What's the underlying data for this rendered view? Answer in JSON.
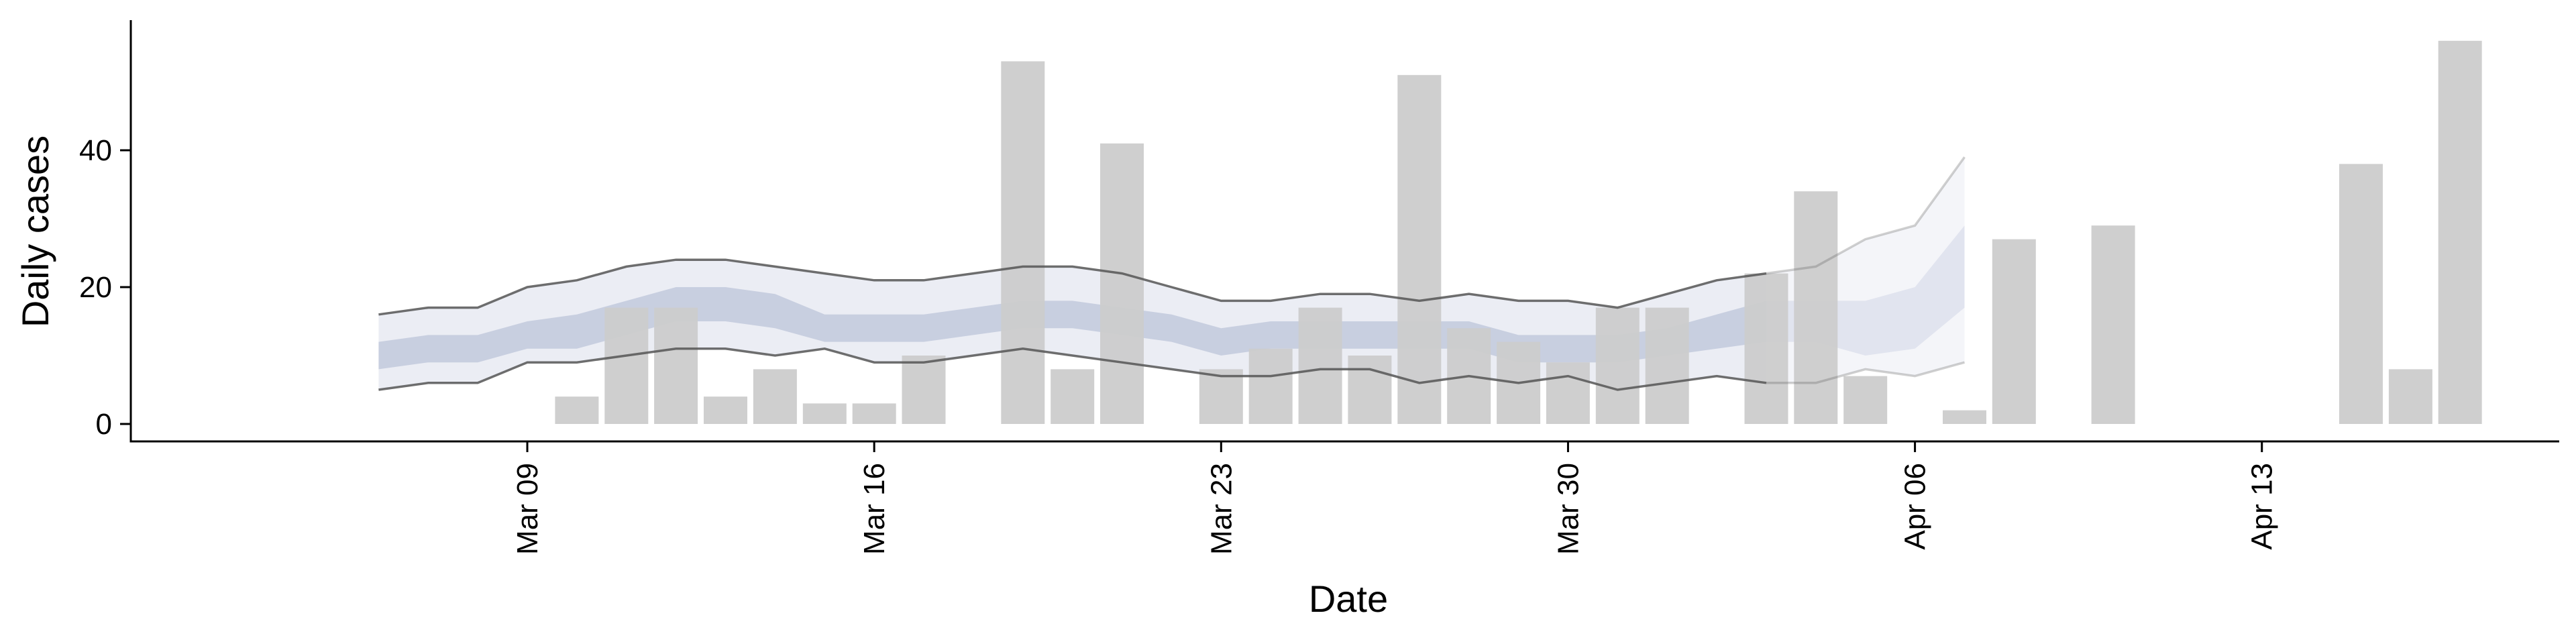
{
  "chart_data": {
    "type": "bar",
    "xlabel": "Date",
    "ylabel": "Daily cases",
    "ylim": [
      0,
      58
    ],
    "yticks": [
      0,
      20,
      40
    ],
    "xlim": [
      "2020-03-01",
      "2020-04-19"
    ],
    "xticks": [
      {
        "date": "2020-03-09",
        "label": "Mar 09"
      },
      {
        "date": "2020-03-16",
        "label": "Mar 16"
      },
      {
        "date": "2020-03-23",
        "label": "Mar 23"
      },
      {
        "date": "2020-03-30",
        "label": "Mar 30"
      },
      {
        "date": "2020-04-06",
        "label": "Apr 06"
      },
      {
        "date": "2020-04-13",
        "label": "Apr 13"
      }
    ],
    "bar_color": "#cccccc",
    "band_color": "#8090b8",
    "line_color": "#555555",
    "grid": false,
    "bars": [
      {
        "date": "2020-03-10",
        "value": 4
      },
      {
        "date": "2020-03-11",
        "value": 17
      },
      {
        "date": "2020-03-12",
        "value": 17
      },
      {
        "date": "2020-03-13",
        "value": 4
      },
      {
        "date": "2020-03-14",
        "value": 8
      },
      {
        "date": "2020-03-15",
        "value": 3
      },
      {
        "date": "2020-03-16",
        "value": 3
      },
      {
        "date": "2020-03-17",
        "value": 10
      },
      {
        "date": "2020-03-19",
        "value": 53
      },
      {
        "date": "2020-03-20",
        "value": 8
      },
      {
        "date": "2020-03-21",
        "value": 41
      },
      {
        "date": "2020-03-23",
        "value": 8
      },
      {
        "date": "2020-03-24",
        "value": 11
      },
      {
        "date": "2020-03-25",
        "value": 17
      },
      {
        "date": "2020-03-26",
        "value": 10
      },
      {
        "date": "2020-03-27",
        "value": 51
      },
      {
        "date": "2020-03-28",
        "value": 14
      },
      {
        "date": "2020-03-29",
        "value": 12
      },
      {
        "date": "2020-03-30",
        "value": 9
      },
      {
        "date": "2020-03-31",
        "value": 17
      },
      {
        "date": "2020-04-01",
        "value": 17
      },
      {
        "date": "2020-04-03",
        "value": 22
      },
      {
        "date": "2020-04-04",
        "value": 34
      },
      {
        "date": "2020-04-05",
        "value": 7
      },
      {
        "date": "2020-04-07",
        "value": 2
      },
      {
        "date": "2020-04-08",
        "value": 27
      },
      {
        "date": "2020-04-10",
        "value": 29
      },
      {
        "date": "2020-04-15",
        "value": 38
      },
      {
        "date": "2020-04-16",
        "value": 8
      },
      {
        "date": "2020-04-17",
        "value": 56
      }
    ],
    "estimate": {
      "dates": [
        "2020-03-06",
        "2020-03-07",
        "2020-03-08",
        "2020-03-09",
        "2020-03-10",
        "2020-03-11",
        "2020-03-12",
        "2020-03-13",
        "2020-03-14",
        "2020-03-15",
        "2020-03-16",
        "2020-03-17",
        "2020-03-18",
        "2020-03-19",
        "2020-03-20",
        "2020-03-21",
        "2020-03-22",
        "2020-03-23",
        "2020-03-24",
        "2020-03-25",
        "2020-03-26",
        "2020-03-27",
        "2020-03-28",
        "2020-03-29",
        "2020-03-30",
        "2020-03-31",
        "2020-04-01",
        "2020-04-02",
        "2020-04-03",
        "2020-04-04",
        "2020-04-05",
        "2020-04-06",
        "2020-04-07"
      ],
      "outer_upper": [
        16,
        17,
        17,
        20,
        21,
        23,
        24,
        24,
        23,
        22,
        21,
        21,
        22,
        23,
        23,
        22,
        20,
        18,
        18,
        19,
        19,
        18,
        19,
        18,
        18,
        17,
        19,
        21,
        22,
        23,
        27,
        29,
        39
      ],
      "outer_lower": [
        5,
        6,
        6,
        9,
        9,
        10,
        11,
        11,
        10,
        11,
        9,
        9,
        10,
        11,
        10,
        9,
        8,
        7,
        7,
        8,
        8,
        6,
        7,
        6,
        7,
        5,
        6,
        7,
        6,
        6,
        8,
        7,
        9
      ],
      "inner_upper": [
        12,
        13,
        13,
        15,
        16,
        18,
        20,
        20,
        19,
        16,
        16,
        16,
        17,
        18,
        18,
        17,
        16,
        14,
        15,
        15,
        15,
        15,
        15,
        13,
        13,
        13,
        14,
        16,
        18,
        18,
        18,
        20,
        29
      ],
      "inner_lower": [
        8,
        9,
        9,
        11,
        11,
        13,
        15,
        15,
        14,
        12,
        12,
        12,
        13,
        14,
        14,
        13,
        12,
        10,
        11,
        11,
        11,
        11,
        11,
        9,
        9,
        9,
        10,
        11,
        12,
        12,
        10,
        11,
        17
      ],
      "forecast_from": "2020-04-03"
    }
  }
}
